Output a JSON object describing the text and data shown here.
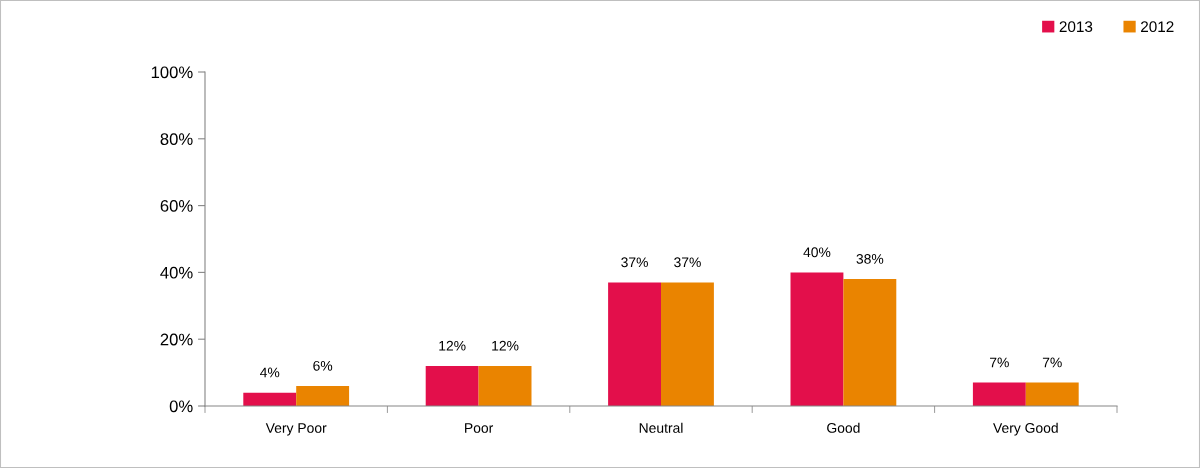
{
  "chart_data": {
    "type": "bar",
    "categories": [
      "Very Poor",
      "Poor",
      "Neutral",
      "Good",
      "Very Good"
    ],
    "series": [
      {
        "name": "2013",
        "color": "#e30f4b",
        "values": [
          4,
          12,
          37,
          40,
          7
        ]
      },
      {
        "name": "2012",
        "color": "#ea8400",
        "values": [
          6,
          12,
          37,
          38,
          7
        ]
      }
    ],
    "ylim": [
      0,
      100
    ],
    "yticks": [
      {
        "value": 0,
        "label": "0%"
      },
      {
        "value": 20,
        "label": "20%"
      },
      {
        "value": 40,
        "label": "40%"
      },
      {
        "value": 60,
        "label": "60%"
      },
      {
        "value": 80,
        "label": "80%"
      },
      {
        "value": 100,
        "label": "100%"
      }
    ],
    "value_labels": [
      [
        "4%",
        "12%",
        "37%",
        "40%",
        "7%"
      ],
      [
        "6%",
        "12%",
        "37%",
        "38%",
        "7%"
      ]
    ],
    "grid": false,
    "legend": "top right"
  }
}
